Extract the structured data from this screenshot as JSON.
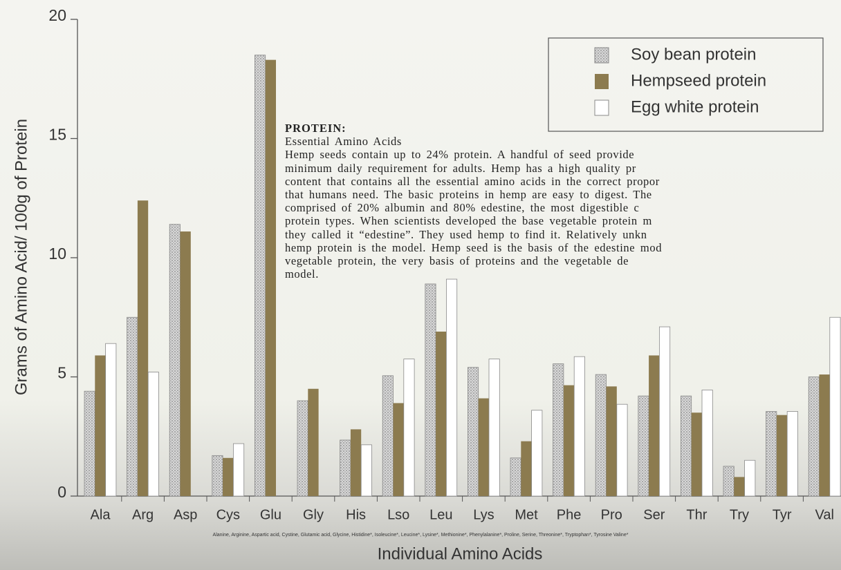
{
  "chart_data": {
    "type": "bar",
    "y_label": "Grams of Amino Acid/ 100g of Protein",
    "x_label": "Individual Amino Acids",
    "footnote": "Alanine, Arginine, Aspartic acid, Cystine, Glutamic acid, Glycine, Histidine*, Isoleucine*, Leucine*, Lysine*, Methionine*, Phenylalanine*, Proline, Serine, Threonine*, Tryptophan*, Tyrosine Valine*",
    "annotation": {
      "heading": "PROTEIN:",
      "subheading": "Essential Amino Acids",
      "lines": [
        "Hemp seeds contain up to 24% protein. A handful of seed provide",
        "minimum daily requirement for adults. Hemp has a high quality pr",
        "content that contains all the essential amino acids in the correct propor",
        "that humans need. The basic proteins in hemp are easy to digest. The",
        "comprised of 20% albumin and 80% edestine, the most digestible c",
        "protein types. When scientists developed the base vegetable protein m",
        "they called it “edestine”. They used hemp to find it. Relatively unkn",
        "hemp protein is the model. Hemp seed is the basis of the edestine mod",
        "vegetable protein, the very basis of proteins and the vegetable de",
        "model."
      ]
    },
    "categories": [
      "Ala",
      "Arg",
      "Asp",
      "Cys",
      "Glu",
      "Gly",
      "His",
      "Lso",
      "Leu",
      "Lys",
      "Met",
      "Phe",
      "Pro",
      "Ser",
      "Thr",
      "Try",
      "Tyr",
      "Val"
    ],
    "series": [
      {
        "name": "Soy bean protein",
        "color": "#b8b8b8",
        "values": [
          4.4,
          7.5,
          11.4,
          1.7,
          18.5,
          4.0,
          2.35,
          5.05,
          8.9,
          5.4,
          1.6,
          5.55,
          5.1,
          4.2,
          4.2,
          1.25,
          3.55,
          5.0
        ]
      },
      {
        "name": "Hempseed protein",
        "color": "#8c7b4f",
        "values": [
          5.9,
          12.4,
          11.1,
          1.6,
          18.3,
          4.5,
          2.8,
          3.9,
          6.9,
          4.1,
          2.3,
          4.65,
          4.6,
          5.9,
          3.5,
          0.8,
          3.4,
          5.1
        ]
      },
      {
        "name": "Egg white protein",
        "color": "#ffffff",
        "values": [
          6.4,
          5.2,
          null,
          2.2,
          null,
          null,
          2.15,
          5.75,
          9.1,
          5.75,
          3.6,
          5.85,
          3.85,
          7.1,
          4.45,
          1.5,
          3.55,
          7.5
        ]
      }
    ],
    "ylim": [
      0,
      20
    ],
    "yticks": [
      0,
      5,
      10,
      15,
      20
    ]
  }
}
